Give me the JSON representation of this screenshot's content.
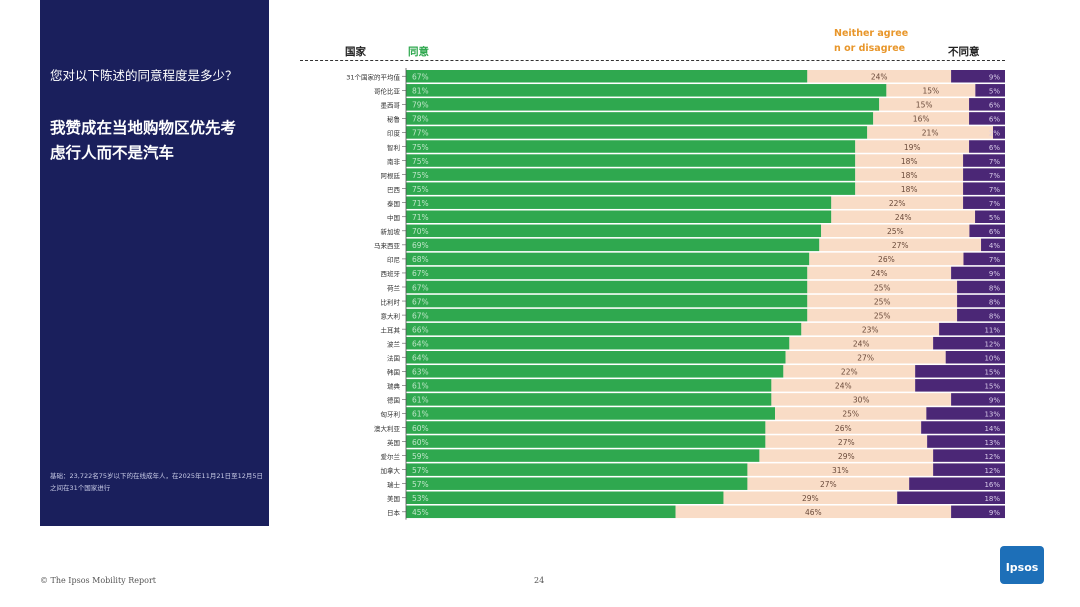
{
  "panel": {
    "question": "您对以下陈述的同意程度是多少？",
    "statement": "我赞成在当地购物区优先考虑行人而不是汽车",
    "base_note": "基础：23,722名75岁以下的在线成年人，在2025年11月21日至12月5日之间在31个国家进行"
  },
  "headers": {
    "country": "国家",
    "agree": "同意",
    "neutral": "Neither agree n or disagree",
    "disagree": "不同意"
  },
  "footer": {
    "source": "© The Ipsos Mobility Report",
    "page": "24"
  },
  "logo": {
    "text": "Ipsos"
  },
  "colors": {
    "agree": "#2fa84f",
    "neutral": "#f9dcc6",
    "disagree": "#4b2776",
    "panel": "#1a1f5c"
  },
  "chart_data": {
    "type": "bar",
    "stacked": true,
    "orientation": "horizontal",
    "title": "我赞成在当地购物区优先考虑行人而不是汽车",
    "series": [
      {
        "name": "同意"
      },
      {
        "name": "Neither agree nor disagree"
      },
      {
        "name": "不同意"
      }
    ],
    "rows": [
      {
        "country": "31个国家的平均值",
        "agree": 67,
        "neutral": 24,
        "disagree": 9
      },
      {
        "country": "哥伦比亚",
        "agree": 81,
        "neutral": 15,
        "disagree": 5
      },
      {
        "country": "墨西哥",
        "agree": 79,
        "neutral": 15,
        "disagree": 6
      },
      {
        "country": "秘鲁",
        "agree": 78,
        "neutral": 16,
        "disagree": 6
      },
      {
        "country": "印度",
        "agree": 77,
        "neutral": 21,
        "disagree": 2
      },
      {
        "country": "智利",
        "agree": 75,
        "neutral": 19,
        "disagree": 6
      },
      {
        "country": "南非",
        "agree": 75,
        "neutral": 18,
        "disagree": 7
      },
      {
        "country": "阿根廷",
        "agree": 75,
        "neutral": 18,
        "disagree": 7
      },
      {
        "country": "巴西",
        "agree": 75,
        "neutral": 18,
        "disagree": 7
      },
      {
        "country": "泰国",
        "agree": 71,
        "neutral": 22,
        "disagree": 7
      },
      {
        "country": "中国",
        "agree": 71,
        "neutral": 24,
        "disagree": 5
      },
      {
        "country": "新加坡",
        "agree": 70,
        "neutral": 25,
        "disagree": 6
      },
      {
        "country": "马来西亚",
        "agree": 69,
        "neutral": 27,
        "disagree": 4
      },
      {
        "country": "印尼",
        "agree": 68,
        "neutral": 26,
        "disagree": 7
      },
      {
        "country": "西班牙",
        "agree": 67,
        "neutral": 24,
        "disagree": 9
      },
      {
        "country": "荷兰",
        "agree": 67,
        "neutral": 25,
        "disagree": 8
      },
      {
        "country": "比利时",
        "agree": 67,
        "neutral": 25,
        "disagree": 8
      },
      {
        "country": "意大利",
        "agree": 67,
        "neutral": 25,
        "disagree": 8
      },
      {
        "country": "土耳其",
        "agree": 66,
        "neutral": 23,
        "disagree": 11
      },
      {
        "country": "波兰",
        "agree": 64,
        "neutral": 24,
        "disagree": 12
      },
      {
        "country": "法国",
        "agree": 64,
        "neutral": 27,
        "disagree": 10
      },
      {
        "country": "韩国",
        "agree": 63,
        "neutral": 22,
        "disagree": 15
      },
      {
        "country": "瑞典",
        "agree": 61,
        "neutral": 24,
        "disagree": 15
      },
      {
        "country": "德国",
        "agree": 61,
        "neutral": 30,
        "disagree": 9
      },
      {
        "country": "匈牙利",
        "agree": 61,
        "neutral": 25,
        "disagree": 13
      },
      {
        "country": "澳大利亚",
        "agree": 60,
        "neutral": 26,
        "disagree": 14
      },
      {
        "country": "英国",
        "agree": 60,
        "neutral": 27,
        "disagree": 13
      },
      {
        "country": "爱尔兰",
        "agree": 59,
        "neutral": 29,
        "disagree": 12
      },
      {
        "country": "加拿大",
        "agree": 57,
        "neutral": 31,
        "disagree": 12
      },
      {
        "country": "瑞士",
        "agree": 57,
        "neutral": 27,
        "disagree": 16
      },
      {
        "country": "美国",
        "agree": 53,
        "neutral": 29,
        "disagree": 18
      },
      {
        "country": "日本",
        "agree": 45,
        "neutral": 46,
        "disagree": 9
      }
    ]
  }
}
